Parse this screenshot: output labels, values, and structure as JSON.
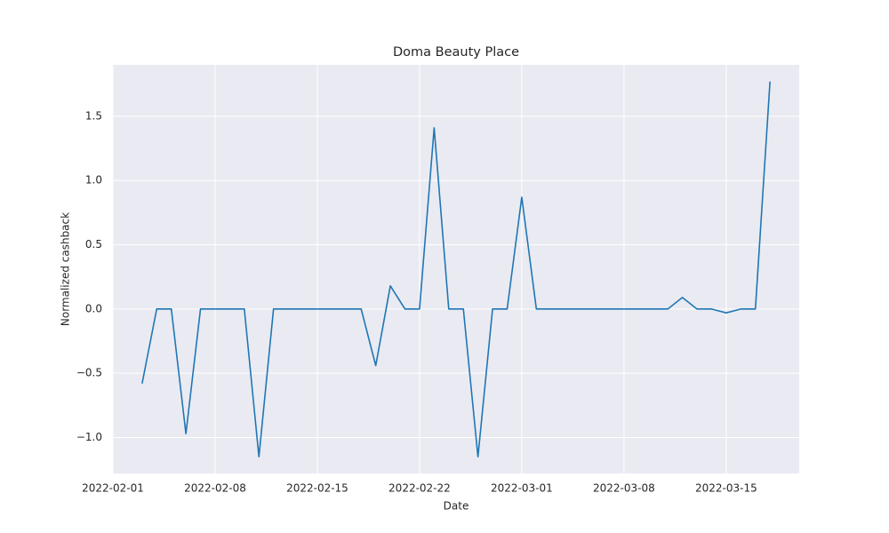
{
  "chart_data": {
    "type": "line",
    "title": "Doma Beauty Place",
    "x_label": "Date",
    "y_label": "Normalized cashback",
    "x": [
      "2022-02-03",
      "2022-02-04",
      "2022-02-05",
      "2022-02-06",
      "2022-02-07",
      "2022-02-08",
      "2022-02-09",
      "2022-02-10",
      "2022-02-11",
      "2022-02-12",
      "2022-02-13",
      "2022-02-14",
      "2022-02-15",
      "2022-02-16",
      "2022-02-17",
      "2022-02-18",
      "2022-02-19",
      "2022-02-20",
      "2022-02-21",
      "2022-02-22",
      "2022-02-23",
      "2022-02-24",
      "2022-02-25",
      "2022-02-26",
      "2022-02-27",
      "2022-02-28",
      "2022-03-01",
      "2022-03-02",
      "2022-03-03",
      "2022-03-04",
      "2022-03-05",
      "2022-03-06",
      "2022-03-07",
      "2022-03-08",
      "2022-03-09",
      "2022-03-10",
      "2022-03-11",
      "2022-03-12",
      "2022-03-13",
      "2022-03-14",
      "2022-03-15",
      "2022-03-16",
      "2022-03-17",
      "2022-03-18"
    ],
    "series": [
      {
        "color": "#1f77b4",
        "values": [
          -0.58,
          0,
          0,
          -0.97,
          0,
          0,
          0,
          0,
          -1.15,
          0,
          0,
          0,
          0,
          0,
          0,
          0,
          -0.44,
          0.18,
          0,
          0,
          1.41,
          0,
          0,
          -1.15,
          0,
          0,
          0.87,
          0,
          0,
          0,
          0,
          0,
          0,
          0,
          0,
          0,
          0,
          0.09,
          0,
          0,
          -0.03,
          0,
          0,
          1.77
        ]
      }
    ],
    "xlim": [
      "2022-02-01",
      "2022-03-20"
    ],
    "xticks": [
      "2022-02-01",
      "2022-02-08",
      "2022-02-15",
      "2022-02-22",
      "2022-03-01",
      "2022-03-08",
      "2022-03-15"
    ],
    "ylim": [
      -1.28,
      1.9
    ],
    "yticks": [
      {
        "value": -1,
        "label": "−1.0"
      },
      {
        "value": -0.5,
        "label": "−0.5"
      },
      {
        "value": 0,
        "label": "0.0"
      },
      {
        "value": 0.5,
        "label": "0.5"
      },
      {
        "value": 1,
        "label": "1.0"
      },
      {
        "value": 1.5,
        "label": "1.5"
      }
    ],
    "grid": true
  }
}
